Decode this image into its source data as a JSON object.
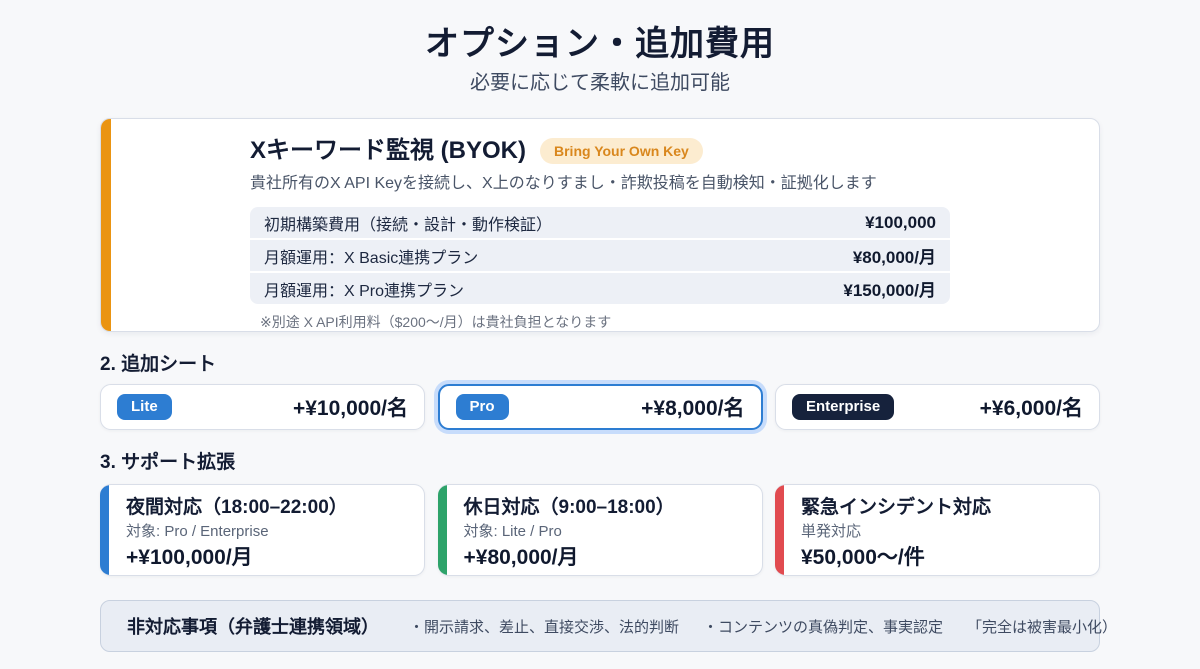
{
  "page": {
    "title": "オプション・追加費用",
    "subtitle": "必要に応じて柔軟に追加可能"
  },
  "byok_card": {
    "title": "Xキーワード監視 (BYOK)",
    "badge": "Bring Your Own Key",
    "description": "貴社所有のX API Keyを接続し、X上のなりすまし・詐欺投稿を自動検知・証拠化します",
    "rows": [
      {
        "label": "初期構築費用（接続・設計・動作検証）",
        "price": "¥100,000"
      },
      {
        "label": "月額運用：X Basic連携プラン",
        "price": "¥80,000/月"
      },
      {
        "label": "月額運用：X Pro連携プラン",
        "price": "¥150,000/月"
      }
    ],
    "note": "※別途 X API利用料（$200〜/月）は貴社負担となります",
    "accent_color": "#EA9412",
    "badge_bg_color": "#FCECD0",
    "badge_text_color": "#D9871D"
  },
  "seats_section": {
    "heading": "2. 追加シート",
    "cards": [
      {
        "badge": "Lite",
        "price": "+¥10,000/名",
        "badge_color": "#2D7DD2",
        "highlighted": false
      },
      {
        "badge": "Pro",
        "price": "+¥8,000/名",
        "badge_color": "#2D7DD2",
        "highlighted": true
      },
      {
        "badge": "Enterprise",
        "price": "+¥6,000/名",
        "badge_color": "#16223C",
        "highlighted": false
      }
    ],
    "highlight_border_color": "#2D7DD2"
  },
  "support_section": {
    "heading": "3. サポート拡張",
    "cards": [
      {
        "title": "夜間対応（18:00–22:00）",
        "target": "対象: Pro / Enterprise",
        "price": "+¥100,000/月",
        "accent_color": "#2D7DD2"
      },
      {
        "title": "休日対応（9:00–18:00）",
        "target": "対象: Lite / Pro",
        "price": "+¥80,000/月",
        "accent_color": "#2EA36A"
      },
      {
        "title": "緊急インシデント対応",
        "target": "単発対応",
        "price": "¥50,000〜/件",
        "accent_color": "#E14B50"
      }
    ]
  },
  "footer": {
    "label": "非対応事項（弁護士連携領域）",
    "items": [
      "・開示請求、差止、直接交渉、法的判断",
      "・コンテンツの真偽判定、事実認定",
      "「完全は被害最小化）"
    ],
    "bg_color": "#E9EDF4"
  }
}
